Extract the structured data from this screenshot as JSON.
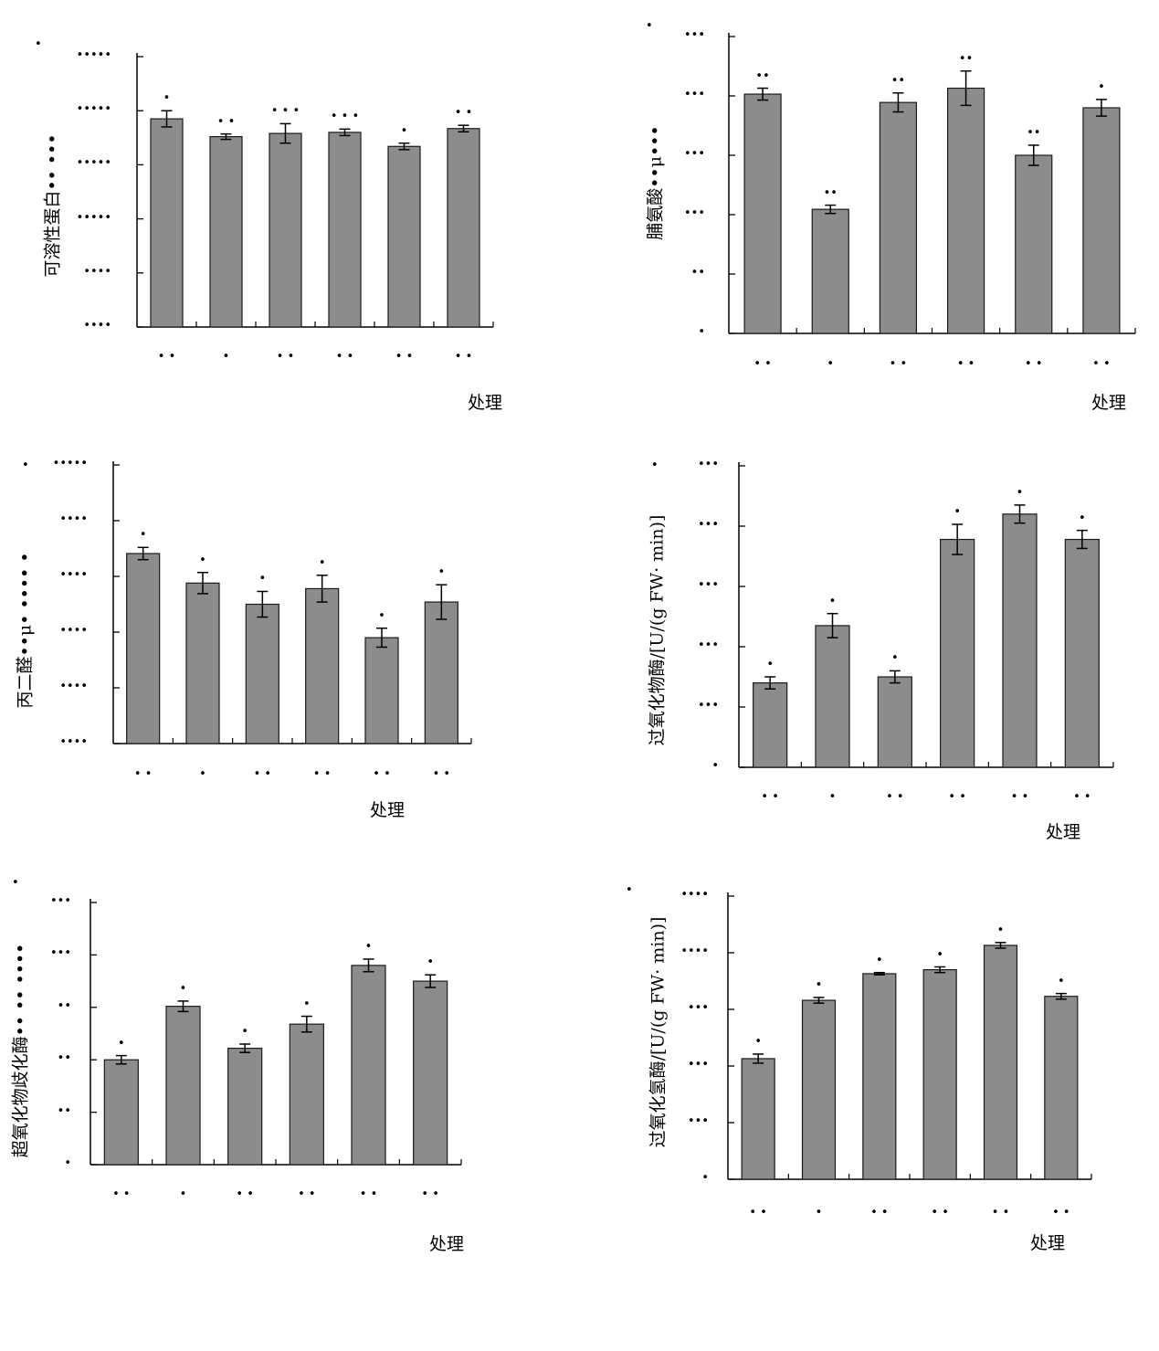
{
  "chart_data": [
    {
      "type": "bar",
      "panel_label": "•",
      "ylabel": "可溶性蛋白•• •••",
      "xlabel": "处理",
      "categories": [
        "• •",
        "•",
        "• •",
        "• •",
        "• •",
        "•  •"
      ],
      "values": [
        3.85,
        3.52,
        3.58,
        3.6,
        3.34,
        3.67
      ],
      "errors": [
        0.15,
        0.05,
        0.18,
        0.06,
        0.06,
        0.06
      ],
      "significance": [
        "•",
        "• •",
        "• • •",
        "• • •",
        "•",
        "• •"
      ],
      "yticks": [
        "•••••",
        "•••••",
        "•••••",
        "•••••",
        "••••",
        "••••"
      ],
      "ylim": [
        0,
        5
      ]
    },
    {
      "type": "bar",
      "panel_label": "•",
      "ylabel": "脯氨酸••μ•••",
      "xlabel": "处理",
      "categories": [
        "• •",
        "•",
        "• •",
        "• •",
        "• •",
        "•  •"
      ],
      "values": [
        4.03,
        2.09,
        3.89,
        4.13,
        3.0,
        3.8
      ],
      "errors": [
        0.1,
        0.07,
        0.16,
        0.29,
        0.17,
        0.14
      ],
      "significance": [
        "••",
        "••",
        "••",
        "••",
        "••",
        "•"
      ],
      "yticks": [
        "•••",
        "•••",
        "•••",
        "•••",
        "••",
        "•"
      ],
      "ylim": [
        0,
        5
      ]
    },
    {
      "type": "bar",
      "panel_label": "•",
      "ylabel": "丙二醛••μ• •••• •",
      "xlabel": "处理",
      "categories": [
        "• •",
        "•",
        "• •",
        "• •",
        "• •",
        "•  •"
      ],
      "values": [
        3.41,
        2.88,
        2.5,
        2.78,
        1.9,
        2.54
      ],
      "errors": [
        0.11,
        0.19,
        0.23,
        0.24,
        0.17,
        0.31
      ],
      "significance": [
        "•",
        "•",
        "•",
        "•",
        "•",
        "•"
      ],
      "yticks": [
        "•••••",
        "••••",
        "••••",
        "••••",
        "••••",
        "••••"
      ],
      "ylim": [
        0,
        5
      ]
    },
    {
      "type": "bar",
      "panel_label": "•",
      "ylabel": "过氧化物酶/[U/(g FW· min)]",
      "xlabel": "处理",
      "categories": [
        "• •",
        "•",
        "• •",
        "• •",
        "• •",
        "•  •"
      ],
      "values": [
        1.4,
        2.35,
        1.5,
        3.78,
        4.2,
        3.78
      ],
      "errors": [
        0.1,
        0.2,
        0.1,
        0.25,
        0.15,
        0.15
      ],
      "significance": [
        "•",
        "•",
        "•",
        "•",
        "•",
        "•"
      ],
      "yticks": [
        "•••",
        "•••",
        "•••",
        "•••",
        "•••",
        "•"
      ],
      "ylim": [
        0,
        5
      ]
    },
    {
      "type": "bar",
      "panel_label": "•",
      "ylabel": "超氧化物歧化酶•• •• ••••",
      "xlabel": "处理",
      "categories": [
        "• •",
        "•",
        "• •",
        "• •",
        "• •",
        "•  •"
      ],
      "values": [
        2.0,
        3.02,
        2.22,
        2.68,
        3.8,
        3.5
      ],
      "errors": [
        0.08,
        0.1,
        0.08,
        0.15,
        0.12,
        0.12
      ],
      "significance": [
        "•",
        "•",
        "•",
        "•",
        "•",
        "•"
      ],
      "yticks": [
        "•••",
        "•••",
        "••",
        "••",
        "••",
        "•"
      ],
      "ylim": [
        0,
        5
      ]
    },
    {
      "type": "bar",
      "panel_label": "•",
      "ylabel": "过氧化氢酶/[U/(g FW· min)]",
      "xlabel": "处理",
      "categories": [
        "• •",
        "•",
        "• •",
        "• •",
        "• •",
        "•  •"
      ],
      "values": [
        2.13,
        3.16,
        3.63,
        3.7,
        4.13,
        3.23
      ],
      "errors": [
        0.08,
        0.05,
        0.02,
        0.05,
        0.05,
        0.05
      ],
      "significance": [
        "•",
        "•",
        "•",
        "•",
        "•",
        "•"
      ],
      "yticks": [
        "••••",
        "••••",
        "•••",
        "•••",
        "•••",
        "•"
      ],
      "ylim": [
        0,
        5
      ]
    }
  ],
  "colors": {
    "bar_fill": "#8c8c8c",
    "bar_stroke": "#1a1a1a",
    "axis": "#000000"
  }
}
